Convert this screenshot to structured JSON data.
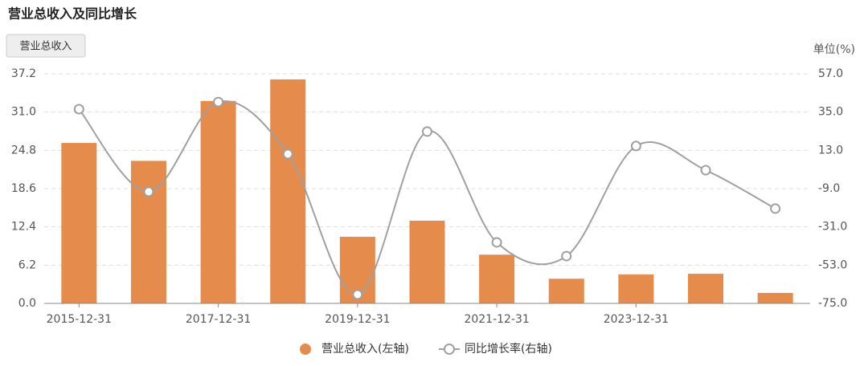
{
  "chart_data": {
    "type": "bar_line",
    "title": "营业总收入及同比增长",
    "y2_unit": "单位(%)",
    "categories": [
      "2015-12-31",
      null,
      "2017-12-31",
      null,
      "2019-12-31",
      null,
      "2021-12-31",
      null,
      "2023-12-31",
      null,
      null
    ],
    "series": [
      {
        "name": "营业总收入(左轴)",
        "type": "bar",
        "color": "#e58b4c",
        "values": [
          26.0,
          23.1,
          32.8,
          36.3,
          10.8,
          13.4,
          7.9,
          4.0,
          4.7,
          4.8,
          1.7
        ]
      },
      {
        "name": "同比增长率(右轴)",
        "type": "line",
        "axis": "y2",
        "color": "#a0a0a0",
        "values": [
          36.7,
          -10.8,
          40.8,
          10.9,
          -69.9,
          23.8,
          -39.9,
          -47.8,
          15.5,
          1.6,
          -20.5
        ]
      }
    ],
    "tooltip_series": "营业总收入",
    "ylim": [
      0,
      37.2
    ],
    "yticks": [
      {
        "value": 0,
        "label": "0.0"
      },
      6.2,
      12.4,
      18.6,
      24.8,
      {
        "value": 31,
        "label": "31.0"
      },
      37.2
    ],
    "y2lim": [
      -75,
      57
    ],
    "y2ticks": [
      {
        "value": -75,
        "label": "-75.0"
      },
      {
        "value": -53,
        "label": "-53.0"
      },
      {
        "value": -31,
        "label": "-31.0"
      },
      {
        "value": -9,
        "label": "-9.0"
      },
      {
        "value": 13,
        "label": "13.0"
      },
      {
        "value": 35,
        "label": "35.0"
      },
      {
        "value": 57,
        "label": "57.0"
      }
    ],
    "grid": true
  }
}
